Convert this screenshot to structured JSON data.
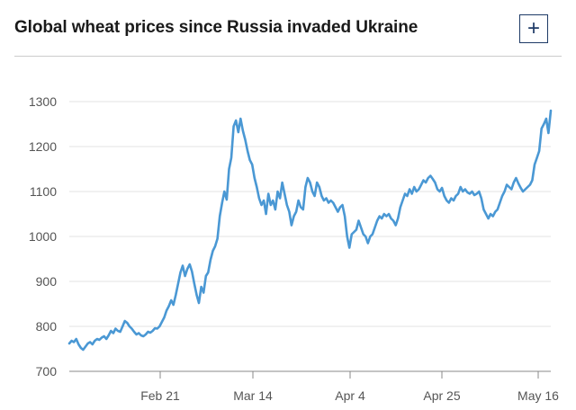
{
  "header": {
    "title": "Global wheat prices since Russia invaded Ukraine",
    "expand_label": "+"
  },
  "chart_data": {
    "type": "line",
    "title": "Global wheat prices since Russia invaded Ukraine",
    "xlabel": "",
    "ylabel": "",
    "ylim": [
      700,
      1300
    ],
    "yticks": [
      700,
      800,
      900,
      1000,
      1100,
      1200,
      1300
    ],
    "xticks": [
      "Feb 21",
      "Mar 14",
      "Apr 4",
      "Apr 25",
      "May 16"
    ],
    "grid": "horizontal",
    "color": "#4a98d4",
    "series": [
      {
        "values": [
          762,
          768,
          765,
          772,
          760,
          752,
          748,
          755,
          762,
          765,
          760,
          768,
          772,
          770,
          775,
          778,
          772,
          780,
          790,
          785,
          795,
          790,
          788,
          800,
          812,
          808,
          800,
          795,
          788,
          782,
          785,
          780,
          778,
          782,
          788,
          786,
          790,
          796,
          795,
          800,
          810,
          820,
          835,
          845,
          858,
          848,
          870,
          895,
          920,
          935,
          912,
          928,
          938,
          922,
          895,
          870,
          852,
          888,
          875,
          912,
          920,
          948,
          968,
          978,
          995,
          1045,
          1075,
          1100,
          1082,
          1150,
          1175,
          1245,
          1258,
          1232,
          1262,
          1235,
          1215,
          1190,
          1170,
          1160,
          1130,
          1110,
          1085,
          1070,
          1080,
          1050,
          1095,
          1070,
          1080,
          1060,
          1100,
          1085,
          1120,
          1095,
          1070,
          1055,
          1025,
          1045,
          1055,
          1080,
          1065,
          1060,
          1110,
          1130,
          1120,
          1100,
          1090,
          1120,
          1110,
          1090,
          1080,
          1085,
          1075,
          1080,
          1075,
          1065,
          1055,
          1065,
          1070,
          1045,
          1000,
          975,
          1005,
          1010,
          1015,
          1035,
          1020,
          1005,
          1000,
          985,
          1000,
          1005,
          1020,
          1035,
          1045,
          1040,
          1050,
          1045,
          1050,
          1040,
          1035,
          1025,
          1040,
          1065,
          1080,
          1095,
          1090,
          1105,
          1095,
          1110,
          1100,
          1105,
          1115,
          1125,
          1120,
          1130,
          1135,
          1128,
          1120,
          1105,
          1100,
          1108,
          1090,
          1080,
          1075,
          1085,
          1080,
          1090,
          1095,
          1110,
          1100,
          1105,
          1098,
          1095,
          1100,
          1092,
          1095,
          1100,
          1085,
          1060,
          1050,
          1040,
          1050,
          1045,
          1055,
          1060,
          1075,
          1090,
          1100,
          1115,
          1110,
          1105,
          1120,
          1130,
          1118,
          1108,
          1100,
          1105,
          1110,
          1115,
          1125,
          1160,
          1175,
          1190,
          1240,
          1250,
          1262,
          1230,
          1280
        ]
      }
    ]
  }
}
